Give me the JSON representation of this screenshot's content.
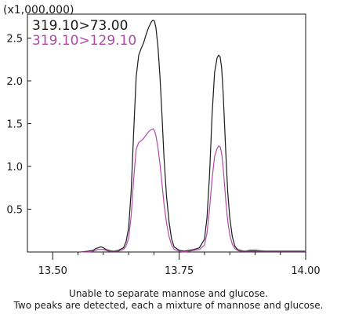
{
  "caption": {
    "line1": "Unable to separate mannose and glucose.",
    "line2": "Two peaks are detected, each a mixture of mannose and glucose."
  },
  "chart_data": {
    "type": "line",
    "title": "",
    "xlabel": "",
    "ylabel": "",
    "y_multiplier": "(x1,000,000)",
    "xlim": [
      13.45,
      14.0
    ],
    "ylim": [
      0,
      2.78
    ],
    "x_ticks": [
      13.5,
      13.75,
      14.0
    ],
    "x_tick_labels": [
      "13.50",
      "13.75",
      "14.00"
    ],
    "y_ticks": [
      0.5,
      1.0,
      1.5,
      2.0,
      2.5
    ],
    "y_tick_labels": [
      "0.5",
      "1.0",
      "1.5",
      "2.0",
      "2.5"
    ],
    "grid": false,
    "legend_position": "top-left",
    "series": [
      {
        "name": "319.10>73.00",
        "color": "#1a1a1a",
        "x": [
          13.555,
          13.57,
          13.58,
          13.585,
          13.59,
          13.595,
          13.6,
          13.605,
          13.61,
          13.62,
          13.63,
          13.64,
          13.645,
          13.65,
          13.655,
          13.66,
          13.665,
          13.67,
          13.675,
          13.68,
          13.685,
          13.69,
          13.695,
          13.698,
          13.701,
          13.704,
          13.708,
          13.712,
          13.716,
          13.72,
          13.725,
          13.73,
          13.735,
          13.74,
          13.75,
          13.76,
          13.77,
          13.78,
          13.79,
          13.8,
          13.805,
          13.81,
          13.815,
          13.82,
          13.825,
          13.828,
          13.831,
          13.834,
          13.837,
          13.84,
          13.843,
          13.846,
          13.85,
          13.855,
          13.86,
          13.865,
          13.87,
          13.88,
          13.89,
          13.9,
          13.92,
          13.94,
          13.96,
          13.98,
          14.0
        ],
        "values": [
          0,
          0.01,
          0.02,
          0.04,
          0.05,
          0.06,
          0.05,
          0.03,
          0.02,
          0.01,
          0.02,
          0.05,
          0.12,
          0.28,
          0.7,
          1.4,
          2.05,
          2.3,
          2.38,
          2.45,
          2.55,
          2.63,
          2.69,
          2.71,
          2.7,
          2.62,
          2.4,
          2.05,
          1.6,
          1.1,
          0.65,
          0.35,
          0.15,
          0.06,
          0.02,
          0.01,
          0.02,
          0.03,
          0.05,
          0.15,
          0.4,
          0.9,
          1.6,
          2.1,
          2.27,
          2.3,
          2.28,
          2.15,
          1.85,
          1.45,
          1.05,
          0.7,
          0.4,
          0.18,
          0.07,
          0.03,
          0.02,
          0.01,
          0.02,
          0.02,
          0.01,
          0.01,
          0.01,
          0.01,
          0.01
        ]
      },
      {
        "name": "319.10>129.10",
        "color": "#b04aa8",
        "x": [
          13.555,
          13.57,
          13.58,
          13.585,
          13.59,
          13.595,
          13.6,
          13.605,
          13.61,
          13.62,
          13.63,
          13.64,
          13.645,
          13.65,
          13.655,
          13.66,
          13.665,
          13.67,
          13.675,
          13.68,
          13.685,
          13.69,
          13.695,
          13.698,
          13.701,
          13.704,
          13.708,
          13.712,
          13.716,
          13.72,
          13.725,
          13.73,
          13.735,
          13.74,
          13.75,
          13.76,
          13.77,
          13.78,
          13.79,
          13.8,
          13.805,
          13.81,
          13.815,
          13.82,
          13.825,
          13.828,
          13.831,
          13.834,
          13.837,
          13.84,
          13.843,
          13.846,
          13.85,
          13.855,
          13.86,
          13.865,
          13.87,
          13.88,
          13.89,
          13.9,
          13.92,
          13.94,
          13.96,
          13.98,
          14.0
        ],
        "values": [
          0,
          0,
          0.01,
          0.02,
          0.03,
          0.03,
          0.03,
          0.02,
          0.01,
          0.01,
          0.01,
          0.03,
          0.07,
          0.16,
          0.42,
          0.85,
          1.2,
          1.28,
          1.3,
          1.33,
          1.37,
          1.41,
          1.43,
          1.44,
          1.42,
          1.36,
          1.22,
          1.03,
          0.8,
          0.56,
          0.34,
          0.18,
          0.08,
          0.03,
          0.01,
          0,
          0.01,
          0.02,
          0.03,
          0.08,
          0.22,
          0.5,
          0.85,
          1.12,
          1.21,
          1.24,
          1.23,
          1.15,
          0.98,
          0.76,
          0.54,
          0.36,
          0.2,
          0.09,
          0.04,
          0.02,
          0.01,
          0.01,
          0.01,
          0.01,
          0.01,
          0.01,
          0.01,
          0.01,
          0.01
        ]
      }
    ]
  }
}
